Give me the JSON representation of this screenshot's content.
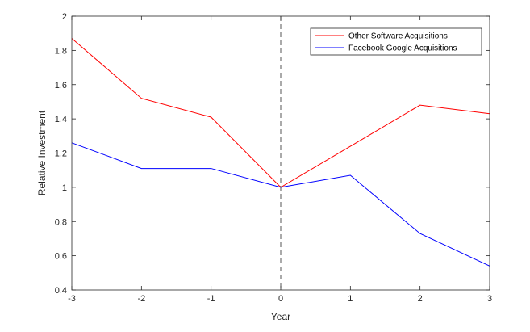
{
  "chart_data": {
    "type": "line",
    "title": "",
    "xlabel": "Year",
    "ylabel": "Relative Investment",
    "xlim": [
      -3,
      3
    ],
    "ylim": [
      0.4,
      2
    ],
    "x": [
      -3,
      -2,
      -1,
      0,
      1,
      2,
      3
    ],
    "xticks": [
      "-3",
      "-2",
      "-1",
      "0",
      "1",
      "2",
      "3"
    ],
    "yticks": [
      "0.4",
      "0.6",
      "0.8",
      "1",
      "1.2",
      "1.4",
      "1.6",
      "1.8",
      "2"
    ],
    "grid": false,
    "legend_position": "top-right",
    "reference_line": {
      "x": 0,
      "style": "dashed"
    },
    "series": [
      {
        "name": "Other Software Acquisitions",
        "color": "#ff0000",
        "values": [
          1.87,
          1.52,
          1.41,
          1.0,
          1.24,
          1.48,
          1.43
        ]
      },
      {
        "name": "Facebook Google Acquisitions",
        "color": "#0000ff",
        "values": [
          1.26,
          1.11,
          1.11,
          1.0,
          1.07,
          0.73,
          0.54
        ]
      }
    ]
  }
}
